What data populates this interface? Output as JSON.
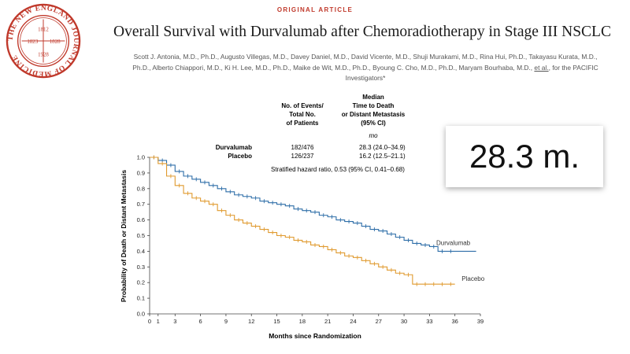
{
  "header": {
    "journal_seal": {
      "ring_text": "THE NEW ENGLAND JOURNAL OF MEDICINE",
      "years": [
        "1812",
        "1823",
        "1828",
        "1928"
      ]
    },
    "kicker": "ORIGINAL ARTICLE",
    "title": "Overall Survival with Durvalumab after Chemoradiotherapy in Stage III NSCLC",
    "authors_line1": "Scott J. Antonia, M.D., Ph.D., Augusto Villegas, M.D., Davey Daniel, M.D., David Vicente, M.D., Shuji Murakami, M.D., Rina Hui, Ph.D., Takayasu Kurata, M.D.,",
    "authors_line2a": "Ph.D., Alberto Chiappori, M.D., Ki H. Lee, M.D., Ph.D., Maike de Wit, M.D., Ph.D., Byoung C. Cho, M.D., Ph.D., Maryam Bourhaba, M.D.,",
    "authors_etal": "et al.",
    "authors_line2b": ", for the PACIFIC",
    "authors_line3": "Investigators*"
  },
  "table": {
    "col1_header": [
      "No. of Events/",
      "Total No.",
      "of Patients"
    ],
    "col2_header": [
      "Median",
      "Time to Death",
      "or Distant Metastasis",
      "(95% CI)"
    ],
    "unit": "mo",
    "rows": [
      {
        "group": "Durvalumab",
        "events": "182/476",
        "median": "28.3 (24.0–34.9)"
      },
      {
        "group": "Placebo",
        "events": "126/237",
        "median": "16.2 (12.5–21.1)"
      }
    ],
    "hazard": "Stratified hazard ratio, 0.53 (95% CI, 0.41–0.68)"
  },
  "callout": {
    "text": "28.3 m."
  },
  "colors": {
    "durvalumab": "#2e6ea8",
    "placebo": "#e09a2f",
    "seal": "#c0392b"
  },
  "chart_data": {
    "type": "line",
    "title": "",
    "xlabel": "Months since Randomization",
    "ylabel": "Probability of Death or Distant Metastasis",
    "xlim": [
      0,
      39
    ],
    "ylim": [
      0,
      1.0
    ],
    "x_ticks": [
      0,
      1,
      3,
      6,
      9,
      12,
      15,
      18,
      21,
      24,
      27,
      30,
      33,
      36,
      39
    ],
    "y_ticks": [
      0.0,
      0.1,
      0.2,
      0.3,
      0.4,
      0.5,
      0.6,
      0.7,
      0.8,
      0.9,
      1.0
    ],
    "step": true,
    "series": [
      {
        "name": "Durvalumab",
        "color": "#2e6ea8",
        "x": [
          0,
          1,
          2,
          3,
          4,
          5,
          6,
          7,
          8,
          9,
          10,
          11,
          12,
          13,
          14,
          15,
          16,
          17,
          18,
          19,
          20,
          21,
          22,
          23,
          24,
          25,
          26,
          27,
          28,
          29,
          30,
          31,
          32,
          33,
          34,
          35,
          36
        ],
        "y": [
          1.0,
          0.98,
          0.95,
          0.91,
          0.88,
          0.86,
          0.84,
          0.82,
          0.8,
          0.78,
          0.76,
          0.75,
          0.74,
          0.72,
          0.71,
          0.7,
          0.69,
          0.67,
          0.66,
          0.65,
          0.63,
          0.62,
          0.6,
          0.59,
          0.58,
          0.56,
          0.54,
          0.53,
          0.51,
          0.49,
          0.47,
          0.45,
          0.44,
          0.43,
          0.4,
          0.4,
          0.4
        ]
      },
      {
        "name": "Placebo",
        "color": "#e09a2f",
        "x": [
          0,
          1,
          2,
          3,
          4,
          5,
          6,
          7,
          8,
          9,
          10,
          11,
          12,
          13,
          14,
          15,
          16,
          17,
          18,
          19,
          20,
          21,
          22,
          23,
          24,
          25,
          26,
          27,
          28,
          29,
          30,
          31,
          32,
          33,
          34,
          35,
          36
        ],
        "y": [
          1.0,
          0.96,
          0.88,
          0.82,
          0.77,
          0.74,
          0.72,
          0.7,
          0.66,
          0.63,
          0.6,
          0.58,
          0.56,
          0.54,
          0.52,
          0.5,
          0.49,
          0.47,
          0.46,
          0.44,
          0.43,
          0.41,
          0.39,
          0.37,
          0.36,
          0.34,
          0.32,
          0.3,
          0.28,
          0.26,
          0.25,
          0.19,
          0.19,
          0.19,
          0.19,
          0.19,
          0.19
        ]
      }
    ],
    "series_labels": [
      "Durvalumab",
      "Placebo"
    ]
  }
}
